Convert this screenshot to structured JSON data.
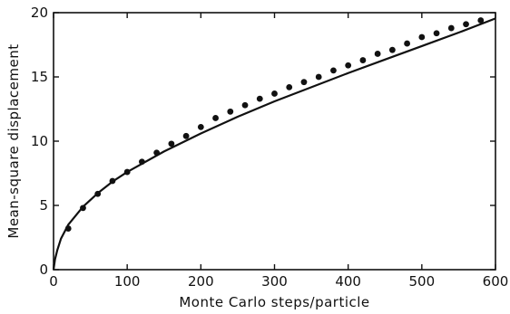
{
  "chart_data": {
    "type": "scatter",
    "title": "",
    "xlabel": "Monte Carlo steps/particle",
    "ylabel": "Mean-square displacement",
    "xlim": [
      0,
      600
    ],
    "ylim": [
      0,
      20
    ],
    "xticks": [
      0,
      100,
      200,
      300,
      400,
      500,
      600
    ],
    "yticks": [
      0,
      5,
      10,
      15,
      20
    ],
    "grid": false,
    "legend": "none",
    "series": [
      {
        "type": "scatter",
        "x": [
          20,
          40,
          60,
          80,
          100,
          120,
          140,
          160,
          180,
          200,
          220,
          240,
          260,
          280,
          300,
          320,
          340,
          360,
          380,
          400,
          420,
          440,
          460,
          480,
          500,
          520,
          540,
          560,
          580
        ],
        "y": [
          3.2,
          4.8,
          5.9,
          6.9,
          7.6,
          8.4,
          9.1,
          9.8,
          10.4,
          11.1,
          11.8,
          12.3,
          12.8,
          13.3,
          13.7,
          14.2,
          14.6,
          15.0,
          15.5,
          15.9,
          16.3,
          16.8,
          17.1,
          17.6,
          18.1,
          18.4,
          18.8,
          19.1,
          19.4
        ]
      },
      {
        "type": "line",
        "x": [
          0,
          2,
          5,
          10,
          20,
          40,
          60,
          80,
          100,
          150,
          200,
          250,
          300,
          350,
          400,
          450,
          500,
          550,
          600
        ],
        "y": [
          0,
          0.8,
          1.5,
          2.4,
          3.5,
          4.9,
          5.95,
          6.85,
          7.6,
          9.2,
          10.6,
          11.9,
          13.1,
          14.2,
          15.3,
          16.35,
          17.4,
          18.45,
          19.55
        ]
      }
    ]
  }
}
